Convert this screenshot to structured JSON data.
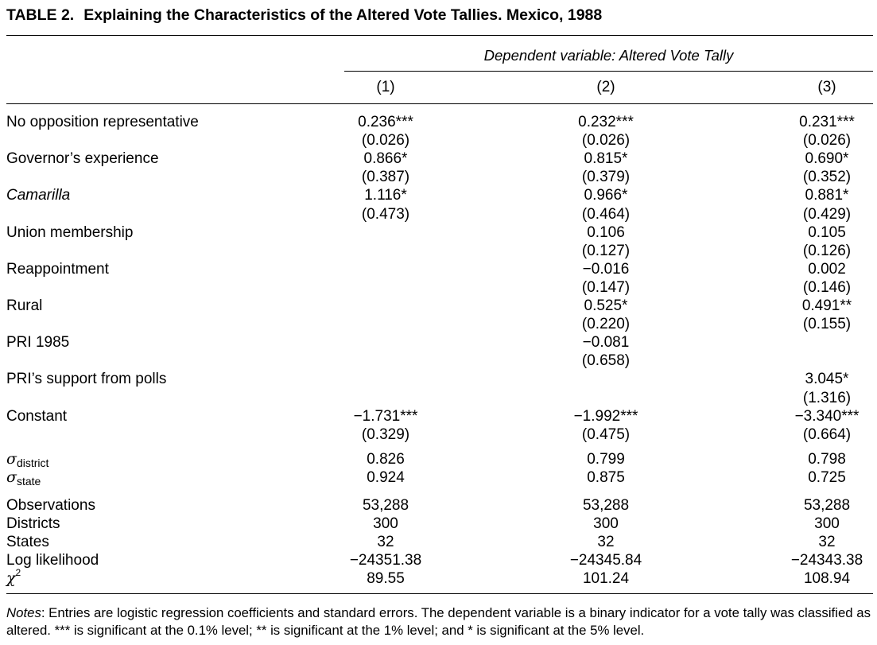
{
  "title": {
    "label": "TABLE 2.",
    "text": "Explaining the Characteristics of the Altered Vote Tallies. Mexico, 1988"
  },
  "header": {
    "dependent_variable": "Dependent variable: Altered Vote Tally",
    "columns": [
      "(1)",
      "(2)",
      "(3)"
    ]
  },
  "rows": [
    {
      "label": "No opposition representative",
      "c1": "0.236***",
      "c2": "0.232***",
      "c3": "0.231***"
    },
    {
      "label": "",
      "c1": "(0.026)",
      "c2": "(0.026)",
      "c3": "(0.026)"
    },
    {
      "label": "Governor’s experience",
      "c1": "0.866*",
      "c2": "0.815*",
      "c3": "0.690*"
    },
    {
      "label": "",
      "c1": "(0.387)",
      "c2": "(0.379)",
      "c3": "(0.352)"
    },
    {
      "label": "Camarilla",
      "c1": "1.116*",
      "c2": "0.966*",
      "c3": "0.881*"
    },
    {
      "label": "",
      "c1": "(0.473)",
      "c2": "(0.464)",
      "c3": "(0.429)"
    },
    {
      "label": "Union membership",
      "c1": "",
      "c2": "0.106",
      "c3": "0.105"
    },
    {
      "label": "",
      "c1": "",
      "c2": "(0.127)",
      "c3": "(0.126)"
    },
    {
      "label": "Reappointment",
      "c1": "",
      "c2": "−0.016",
      "c3": "0.002"
    },
    {
      "label": "",
      "c1": "",
      "c2": "(0.147)",
      "c3": "(0.146)"
    },
    {
      "label": "Rural",
      "c1": "",
      "c2": "0.525*",
      "c3": "0.491**"
    },
    {
      "label": "",
      "c1": "",
      "c2": "(0.220)",
      "c3": "(0.155)"
    },
    {
      "label": "PRI 1985",
      "c1": "",
      "c2": "−0.081",
      "c3": ""
    },
    {
      "label": "",
      "c1": "",
      "c2": "(0.658)",
      "c3": ""
    },
    {
      "label": "PRI’s support from polls",
      "c1": "",
      "c2": "",
      "c3": "3.045*"
    },
    {
      "label": "",
      "c1": "",
      "c2": "",
      "c3": "(1.316)"
    },
    {
      "label": "Constant",
      "c1": "−1.731***",
      "c2": "−1.992***",
      "c3": "−3.340***"
    },
    {
      "label": "",
      "c1": "(0.329)",
      "c2": "(0.475)",
      "c3": "(0.664)"
    }
  ],
  "sigma_rows": [
    {
      "symbol": "σ",
      "subscript": "district",
      "c1": "0.826",
      "c2": "0.799",
      "c3": "0.798"
    },
    {
      "symbol": "σ",
      "subscript": "state",
      "c1": "0.924",
      "c2": "0.875",
      "c3": "0.725"
    }
  ],
  "stats_rows": [
    {
      "label": "Observations",
      "c1": "53,288",
      "c2": "53,288",
      "c3": "53,288"
    },
    {
      "label": "Districts",
      "c1": "300",
      "c2": "300",
      "c3": "300"
    },
    {
      "label": "States",
      "c1": "32",
      "c2": "32",
      "c3": "32"
    },
    {
      "label": "Log likelihood",
      "c1": "−24351.38",
      "c2": "−24345.84",
      "c3": "−24343.38"
    }
  ],
  "chi_row": {
    "symbol": "χ",
    "superscript": "2",
    "c1": "89.55",
    "c2": "101.24",
    "c3": "108.94"
  },
  "notes": {
    "label": "Notes",
    "text": ": Entries are logistic regression coefficients and standard errors. The dependent variable is a binary indicator for a vote tally was classified as altered. *** is significant at the 0.1% level; ** is significant at the 1% level; and * is significant at the 5% level."
  }
}
